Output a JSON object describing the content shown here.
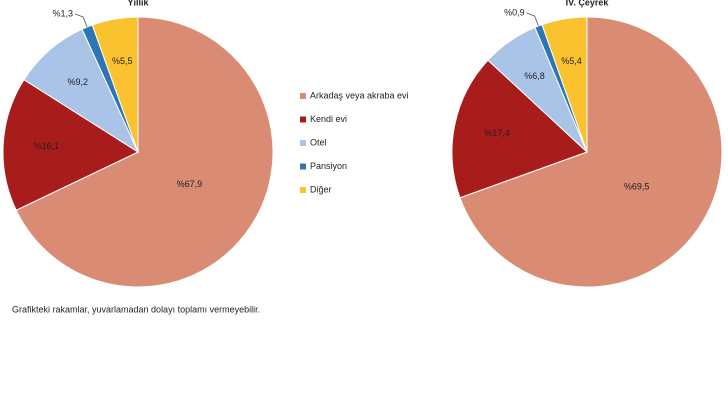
{
  "chart_data": [
    {
      "type": "pie",
      "title": "Yıllık",
      "categories": [
        "Arkadaş veya akraba evi",
        "Kendi evi",
        "Otel",
        "Pansiyon",
        "Diğer"
      ],
      "values": [
        67.9,
        16.1,
        9.2,
        1.3,
        5.5
      ],
      "value_labels": [
        "%67,9",
        "%16,1",
        "%9,2",
        "%1,3",
        "%5,5"
      ],
      "colors": [
        "#d98b74",
        "#a81c1c",
        "#a9c4e6",
        "#2e75b6",
        "#f9c22e"
      ]
    },
    {
      "type": "pie",
      "title": "IV. Çeyrek",
      "categories": [
        "Arkadaş veya akraba evi",
        "Kendi evi",
        "Otel",
        "Pansiyon",
        "Diğer"
      ],
      "values": [
        69.5,
        17.4,
        6.8,
        0.9,
        5.4
      ],
      "value_labels": [
        "%69,5",
        "%17,4",
        "%6,8",
        "%0,9",
        "%5,4"
      ],
      "colors": [
        "#d98b74",
        "#a81c1c",
        "#a9c4e6",
        "#2e75b6",
        "#f9c22e"
      ]
    }
  ],
  "note": "Grafikteki rakamlar, yuvarlamadan dolayı toplamı vermeyebilir."
}
